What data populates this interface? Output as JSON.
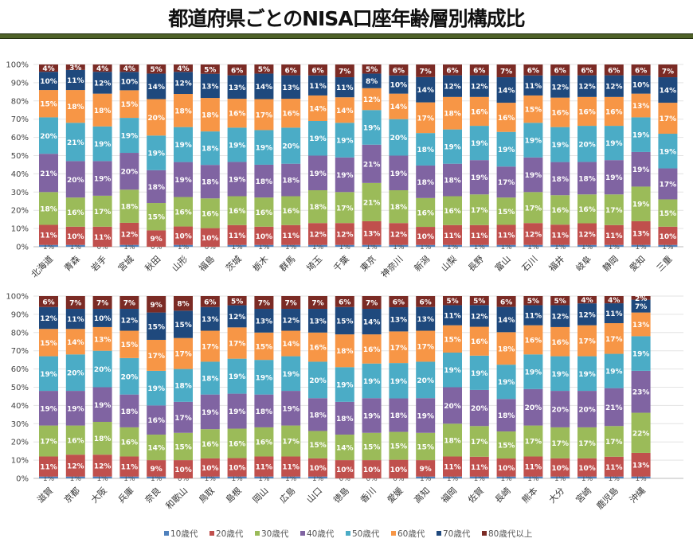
{
  "title": "都道府県ごとのNISA口座年齢層別構成比",
  "legend": [
    "10歳代",
    "20歳代",
    "30歳代",
    "40歳代",
    "50歳代",
    "60歳代",
    "70歳代",
    "80歳代以上"
  ],
  "colors": [
    "#4f81bd",
    "#c0504d",
    "#9bbb59",
    "#8064a2",
    "#4bacc6",
    "#f79646",
    "#1f497d",
    "#7b2b25"
  ],
  "chart_data": [
    {
      "type": "bar",
      "stacked": "100%",
      "ylim": [
        0,
        100
      ],
      "yticks": [
        "0%",
        "10%",
        "20%",
        "30%",
        "40%",
        "50%",
        "60%",
        "70%",
        "80%",
        "90%",
        "100%"
      ],
      "grid": true,
      "legend_position": "bottom",
      "categories": [
        "北海道",
        "青森",
        "岩手",
        "宮城",
        "秋田",
        "山形",
        "福島",
        "茨城",
        "栃木",
        "群馬",
        "埼玉",
        "千葉",
        "東京",
        "神奈川",
        "新潟",
        "山梨",
        "長野",
        "富山",
        "石川",
        "福井",
        "岐阜",
        "静岡",
        "愛知",
        "三重"
      ],
      "series": [
        {
          "name": "10歳代",
          "values": [
            1,
            1,
            0,
            1,
            0,
            1,
            0,
            1,
            1,
            1,
            1,
            1,
            1,
            1,
            1,
            1,
            1,
            1,
            1,
            1,
            1,
            1,
            1,
            1
          ]
        },
        {
          "name": "20歳代",
          "values": [
            11,
            10,
            11,
            12,
            9,
            10,
            10,
            11,
            10,
            11,
            12,
            12,
            13,
            12,
            10,
            11,
            11,
            11,
            12,
            11,
            12,
            11,
            13,
            10
          ]
        },
        {
          "name": "30歳代",
          "values": [
            18,
            16,
            17,
            18,
            15,
            16,
            16,
            16,
            16,
            16,
            18,
            17,
            21,
            18,
            16,
            16,
            17,
            15,
            17,
            16,
            16,
            17,
            19,
            15
          ]
        },
        {
          "name": "40歳代",
          "values": [
            21,
            20,
            19,
            20,
            18,
            19,
            18,
            19,
            18,
            18,
            19,
            19,
            21,
            19,
            18,
            18,
            19,
            17,
            19,
            18,
            18,
            19,
            19,
            17
          ]
        },
        {
          "name": "50歳代",
          "values": [
            20,
            21,
            19,
            19,
            19,
            19,
            18,
            19,
            19,
            20,
            19,
            19,
            19,
            20,
            18,
            19,
            19,
            19,
            19,
            19,
            20,
            19,
            19,
            19
          ]
        },
        {
          "name": "60歳代",
          "values": [
            15,
            18,
            18,
            15,
            20,
            18,
            18,
            16,
            17,
            16,
            14,
            14,
            12,
            14,
            17,
            18,
            16,
            16,
            15,
            16,
            16,
            16,
            13,
            17
          ]
        },
        {
          "name": "70歳代",
          "values": [
            10,
            11,
            12,
            10,
            14,
            12,
            13,
            13,
            14,
            13,
            11,
            11,
            8,
            10,
            14,
            12,
            12,
            14,
            11,
            12,
            12,
            12,
            10,
            14
          ]
        },
        {
          "name": "80歳代以上",
          "values": [
            4,
            3,
            4,
            4,
            5,
            4,
            5,
            6,
            5,
            6,
            6,
            7,
            5,
            6,
            7,
            6,
            6,
            7,
            6,
            6,
            6,
            6,
            6,
            7
          ]
        }
      ]
    },
    {
      "type": "bar",
      "stacked": "100%",
      "ylim": [
        0,
        100
      ],
      "yticks": [
        "0%",
        "10%",
        "20%",
        "30%",
        "40%",
        "50%",
        "60%",
        "70%",
        "80%",
        "90%",
        "100%"
      ],
      "grid": true,
      "legend_position": "bottom",
      "categories": [
        "滋賀",
        "京都",
        "大阪",
        "兵庫",
        "奈良",
        "和歌山",
        "鳥取",
        "島根",
        "岡山",
        "広島",
        "山口",
        "徳島",
        "香川",
        "愛媛",
        "高知",
        "福岡",
        "佐賀",
        "長崎",
        "熊本",
        "大分",
        "宮崎",
        "鹿児島",
        "沖縄"
      ],
      "series": [
        {
          "name": "10歳代",
          "values": [
            1,
            1,
            1,
            1,
            1,
            0,
            1,
            1,
            1,
            1,
            1,
            0,
            0,
            0,
            1,
            1,
            1,
            1,
            1,
            1,
            1,
            1,
            1
          ]
        },
        {
          "name": "20歳代",
          "values": [
            11,
            12,
            12,
            11,
            9,
            10,
            10,
            10,
            11,
            11,
            10,
            10,
            10,
            10,
            9,
            11,
            11,
            10,
            11,
            10,
            10,
            11,
            13
          ]
        },
        {
          "name": "30歳代",
          "values": [
            17,
            16,
            18,
            16,
            14,
            15,
            16,
            16,
            16,
            17,
            15,
            14,
            15,
            15,
            15,
            18,
            17,
            15,
            17,
            17,
            17,
            17,
            22
          ]
        },
        {
          "name": "40歳代",
          "values": [
            19,
            19,
            19,
            18,
            16,
            17,
            19,
            19,
            18,
            19,
            18,
            18,
            19,
            18,
            19,
            20,
            20,
            18,
            20,
            20,
            20,
            21,
            23
          ]
        },
        {
          "name": "50歳代",
          "values": [
            19,
            20,
            20,
            20,
            19,
            18,
            18,
            19,
            19,
            19,
            20,
            19,
            19,
            19,
            20,
            19,
            19,
            19,
            19,
            19,
            19,
            19,
            19
          ]
        },
        {
          "name": "60歳代",
          "values": [
            15,
            14,
            13,
            15,
            17,
            17,
            17,
            17,
            15,
            14,
            16,
            18,
            16,
            17,
            17,
            15,
            16,
            18,
            16,
            16,
            17,
            17,
            13
          ]
        },
        {
          "name": "70歳代",
          "values": [
            12,
            11,
            10,
            12,
            15,
            15,
            13,
            12,
            13,
            12,
            13,
            15,
            14,
            13,
            13,
            11,
            12,
            14,
            11,
            12,
            12,
            11,
            7
          ]
        },
        {
          "name": "80歳代以上",
          "values": [
            6,
            7,
            7,
            7,
            9,
            8,
            6,
            5,
            7,
            7,
            7,
            6,
            7,
            6,
            6,
            5,
            5,
            6,
            5,
            5,
            4,
            4,
            2
          ]
        }
      ]
    }
  ]
}
